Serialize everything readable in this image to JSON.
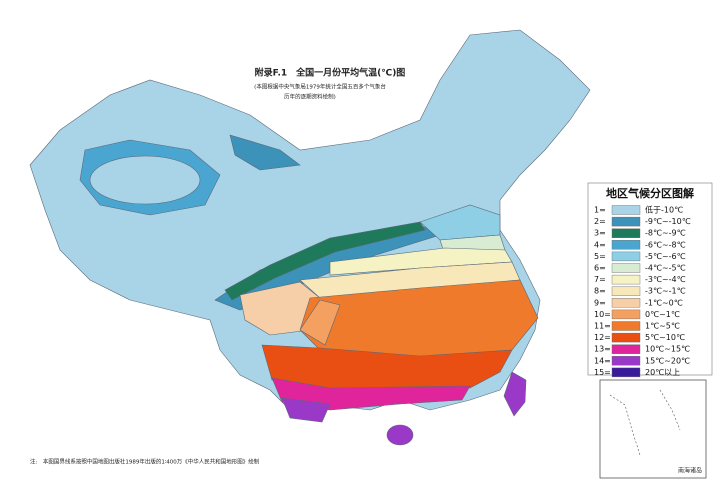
{
  "header": {
    "title": "附录F.1　全国一月份平均气温(℃)图",
    "subtitle_lines": [
      "(本图根据中央气象局1979年统计全国五百多个气象台",
      "历年的逐期资料绘制)"
    ]
  },
  "legend": {
    "title": "地区气候分区图解",
    "entries": [
      {
        "key": "1=",
        "label": "低于-10℃",
        "color": "#a9d3e6"
      },
      {
        "key": "2=",
        "label": "-9℃~-10℃",
        "color": "#3c92b8"
      },
      {
        "key": "3=",
        "label": "-8℃~-9℃",
        "color": "#1f7a5c"
      },
      {
        "key": "4=",
        "label": "-6℃~-8℃",
        "color": "#4aa6d0"
      },
      {
        "key": "5=",
        "label": "-5℃~-6℃",
        "color": "#8fcfe6"
      },
      {
        "key": "6=",
        "label": "-4℃~-5℃",
        "color": "#d7ecd2"
      },
      {
        "key": "7=",
        "label": "-3℃~-4℃",
        "color": "#f5f2c4"
      },
      {
        "key": "8=",
        "label": "-3℃~-1℃",
        "color": "#f8e7b8"
      },
      {
        "key": "9=",
        "label": "-1℃~0℃",
        "color": "#f6cfa8"
      },
      {
        "key": "10=",
        "label": "0℃~1℃",
        "color": "#f4a060"
      },
      {
        "key": "11=",
        "label": "1℃~5℃",
        "color": "#f07a2c"
      },
      {
        "key": "12=",
        "label": "5℃~10℃",
        "color": "#e94e12"
      },
      {
        "key": "13=",
        "label": "10℃~15℃",
        "color": "#e0249c"
      },
      {
        "key": "14=",
        "label": "15℃~20℃",
        "color": "#9a38c8"
      },
      {
        "key": "15=",
        "label": "20℃以上",
        "color": "#3a1a9a"
      }
    ]
  },
  "inset": {
    "label": "南海诸岛"
  },
  "footnote": "注:　本图国界线系按照中国地图出版社1989年出版的1∶400万《中华人民共和国地形图》绘制"
}
